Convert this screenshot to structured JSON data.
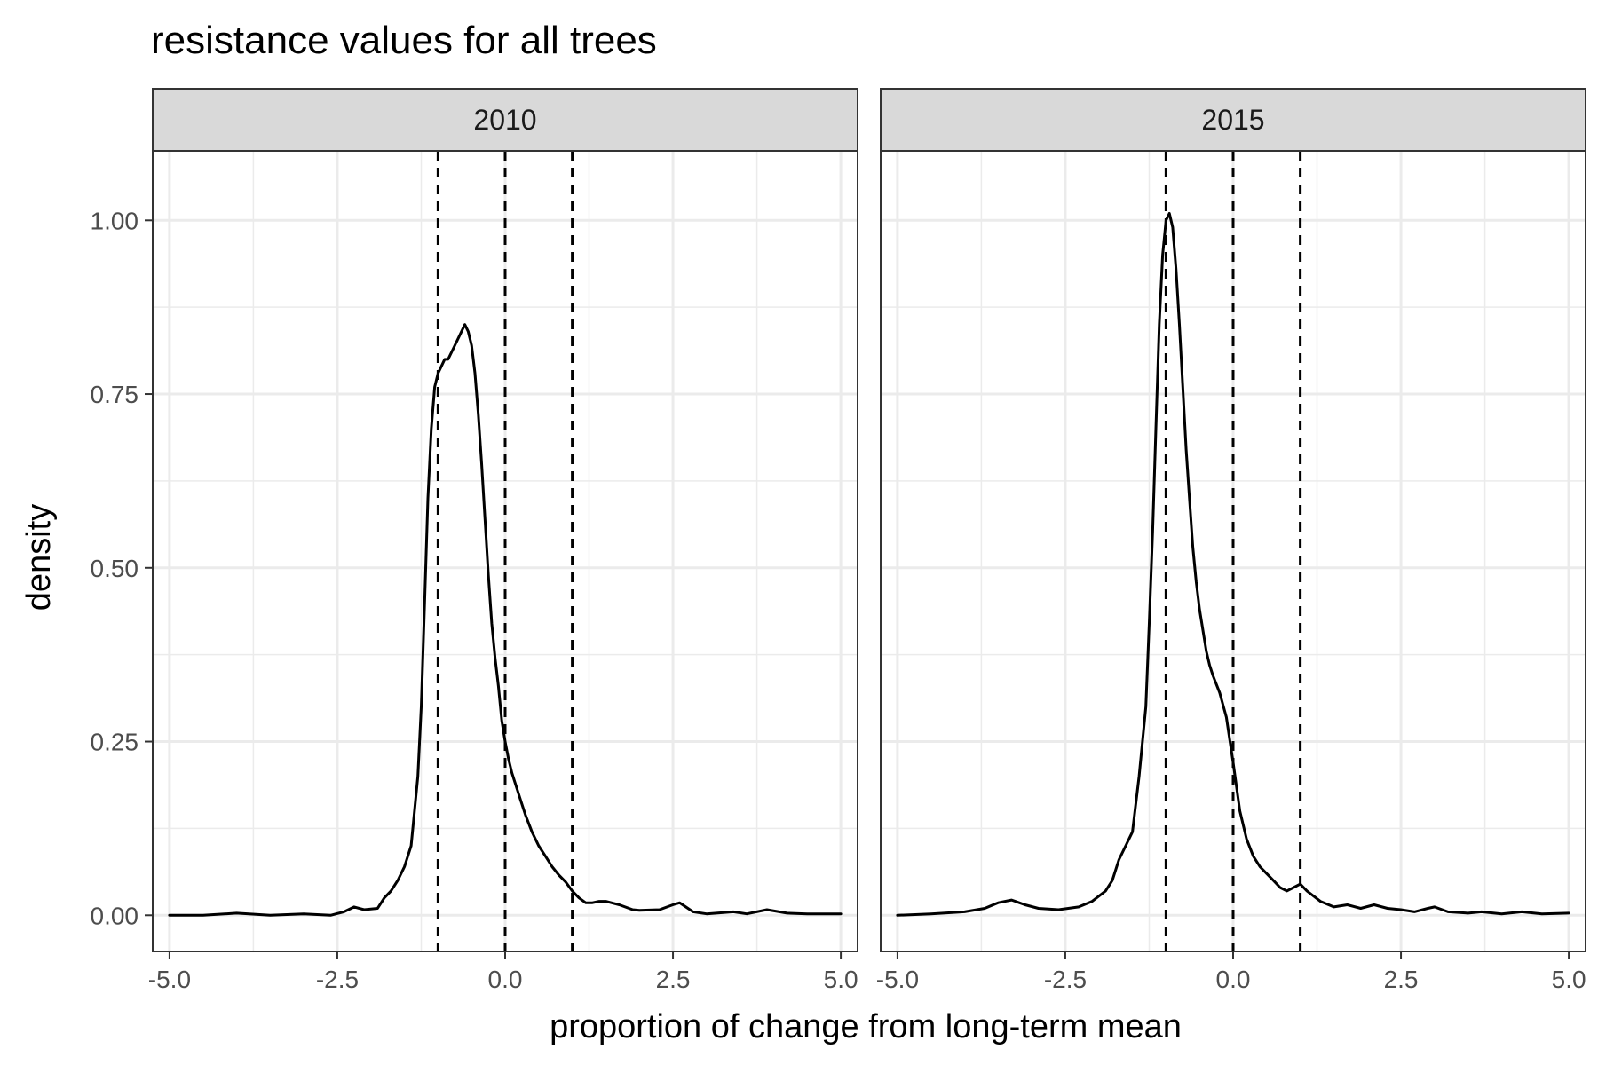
{
  "chart_data": {
    "type": "line",
    "title": "resistance values for all trees",
    "xlabel": "proportion of change from long-term mean",
    "ylabel": "density",
    "xlim": [
      -5.25,
      5.25
    ],
    "ylim": [
      -0.052,
      1.1
    ],
    "x_ticks": [
      -5.0,
      -2.5,
      0.0,
      2.5,
      5.0
    ],
    "x_tick_labels": [
      "-5.0",
      "-2.5",
      "0.0",
      "2.5",
      "5.0"
    ],
    "y_ticks": [
      0.0,
      0.25,
      0.5,
      0.75,
      1.0
    ],
    "y_tick_labels": [
      "0.00",
      "0.25",
      "0.50",
      "0.75",
      "1.00"
    ],
    "grid": true,
    "reference_lines": [
      -1,
      0,
      1
    ],
    "reference_line_style": "dashed",
    "line_color": "#000000",
    "panel_border_color": "#333333",
    "strip_fill": "#d9d9d9",
    "grid_color": "#ebebeb",
    "panels": [
      {
        "label": "2010",
        "series": [
          {
            "x": [
              -5.0,
              -4.5,
              -4.0,
              -3.5,
              -3.0,
              -2.6,
              -2.4,
              -2.25,
              -2.1,
              -1.9,
              -1.8,
              -1.7,
              -1.6,
              -1.5,
              -1.4,
              -1.3,
              -1.25,
              -1.2,
              -1.15,
              -1.1,
              -1.05,
              -1.0,
              -0.95,
              -0.9,
              -0.85,
              -0.8,
              -0.7,
              -0.6,
              -0.55,
              -0.5,
              -0.45,
              -0.4,
              -0.35,
              -0.3,
              -0.25,
              -0.2,
              -0.15,
              -0.1,
              -0.05,
              0.0,
              0.05,
              0.1,
              0.2,
              0.3,
              0.4,
              0.5,
              0.6,
              0.7,
              0.8,
              0.9,
              1.0,
              1.1,
              1.2,
              1.3,
              1.4,
              1.5,
              1.7,
              1.9,
              2.0,
              2.3,
              2.5,
              2.6,
              2.8,
              3.0,
              3.4,
              3.6,
              3.9,
              4.2,
              4.5,
              5.0
            ],
            "y": [
              0.0,
              0.0,
              0.003,
              0.0,
              0.002,
              0.0,
              0.005,
              0.012,
              0.008,
              0.01,
              0.025,
              0.035,
              0.05,
              0.07,
              0.1,
              0.2,
              0.3,
              0.45,
              0.6,
              0.7,
              0.76,
              0.78,
              0.79,
              0.8,
              0.8,
              0.81,
              0.83,
              0.85,
              0.84,
              0.82,
              0.78,
              0.72,
              0.65,
              0.57,
              0.49,
              0.42,
              0.37,
              0.33,
              0.28,
              0.25,
              0.225,
              0.205,
              0.175,
              0.145,
              0.12,
              0.1,
              0.085,
              0.07,
              0.058,
              0.048,
              0.035,
              0.025,
              0.018,
              0.018,
              0.02,
              0.02,
              0.015,
              0.008,
              0.007,
              0.008,
              0.015,
              0.018,
              0.005,
              0.002,
              0.005,
              0.002,
              0.008,
              0.003,
              0.002,
              0.002
            ]
          }
        ]
      },
      {
        "label": "2015",
        "series": [
          {
            "x": [
              -5.0,
              -4.5,
              -4.0,
              -3.7,
              -3.5,
              -3.3,
              -3.1,
              -2.9,
              -2.6,
              -2.3,
              -2.1,
              -1.9,
              -1.8,
              -1.7,
              -1.6,
              -1.5,
              -1.4,
              -1.3,
              -1.25,
              -1.2,
              -1.15,
              -1.1,
              -1.05,
              -1.0,
              -0.95,
              -0.9,
              -0.85,
              -0.8,
              -0.75,
              -0.7,
              -0.65,
              -0.6,
              -0.55,
              -0.5,
              -0.45,
              -0.4,
              -0.35,
              -0.3,
              -0.2,
              -0.1,
              0.0,
              0.05,
              0.1,
              0.2,
              0.3,
              0.4,
              0.5,
              0.6,
              0.7,
              0.8,
              0.9,
              1.0,
              1.1,
              1.3,
              1.5,
              1.7,
              1.9,
              2.1,
              2.3,
              2.5,
              2.7,
              2.9,
              3.0,
              3.2,
              3.5,
              3.7,
              4.0,
              4.3,
              4.6,
              5.0
            ],
            "y": [
              0.0,
              0.002,
              0.005,
              0.01,
              0.018,
              0.022,
              0.015,
              0.01,
              0.008,
              0.012,
              0.02,
              0.035,
              0.05,
              0.08,
              0.1,
              0.12,
              0.2,
              0.3,
              0.42,
              0.55,
              0.7,
              0.85,
              0.95,
              1.0,
              1.01,
              0.99,
              0.93,
              0.85,
              0.76,
              0.67,
              0.6,
              0.53,
              0.48,
              0.44,
              0.41,
              0.38,
              0.36,
              0.345,
              0.32,
              0.285,
              0.22,
              0.185,
              0.15,
              0.11,
              0.085,
              0.07,
              0.06,
              0.05,
              0.04,
              0.035,
              0.04,
              0.045,
              0.035,
              0.02,
              0.012,
              0.015,
              0.01,
              0.015,
              0.01,
              0.008,
              0.005,
              0.01,
              0.012,
              0.005,
              0.003,
              0.005,
              0.002,
              0.005,
              0.002,
              0.003
            ]
          }
        ]
      }
    ]
  }
}
